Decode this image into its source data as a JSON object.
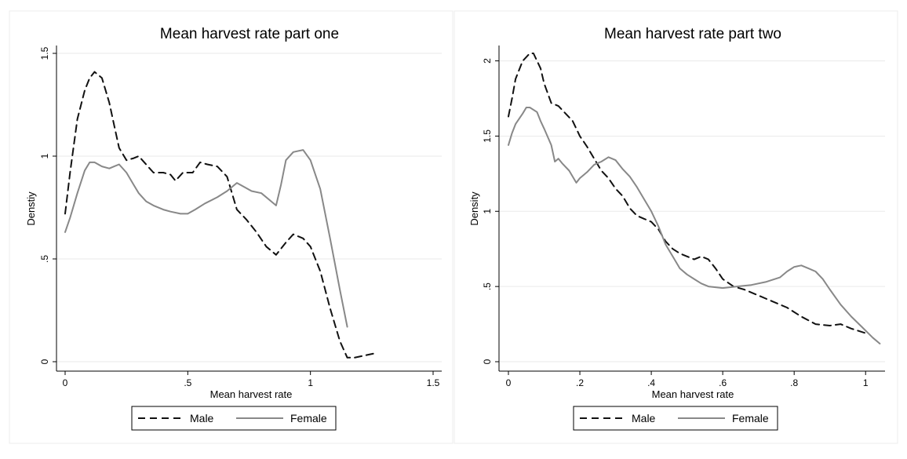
{
  "chart_data": [
    {
      "type": "line",
      "title": "Mean harvest rate part one",
      "xlabel": "Mean harvest rate",
      "ylabel": "Denstiy",
      "xlim": [
        0,
        1.5
      ],
      "ylim": [
        0,
        1.5
      ],
      "xticks": [
        0,
        0.5,
        1,
        1.5
      ],
      "xtick_labels": [
        "0",
        ".5",
        "1",
        "1.5"
      ],
      "yticks": [
        0,
        0.5,
        1,
        1.5
      ],
      "ytick_labels": [
        "0",
        ".5",
        "1",
        "1.5"
      ],
      "grid": true,
      "legend_position": "bottom",
      "series": [
        {
          "name": "Male",
          "style": "dashed",
          "color": "#111111",
          "x": [
            0,
            0.02,
            0.05,
            0.08,
            0.1,
            0.12,
            0.15,
            0.18,
            0.2,
            0.22,
            0.25,
            0.28,
            0.3,
            0.33,
            0.36,
            0.4,
            0.43,
            0.45,
            0.48,
            0.52,
            0.55,
            0.58,
            0.62,
            0.66,
            0.7,
            0.74,
            0.78,
            0.82,
            0.86,
            0.9,
            0.93,
            0.97,
            1.0,
            1.04,
            1.08,
            1.12,
            1.15,
            1.18,
            1.22,
            1.26
          ],
          "y": [
            0.72,
            0.92,
            1.18,
            1.32,
            1.38,
            1.41,
            1.38,
            1.26,
            1.15,
            1.04,
            0.98,
            0.99,
            1.0,
            0.96,
            0.92,
            0.92,
            0.91,
            0.88,
            0.92,
            0.92,
            0.97,
            0.96,
            0.95,
            0.9,
            0.74,
            0.69,
            0.63,
            0.56,
            0.52,
            0.58,
            0.62,
            0.6,
            0.56,
            0.44,
            0.26,
            0.1,
            0.02,
            0.02,
            0.03,
            0.04
          ]
        },
        {
          "name": "Female",
          "style": "solid",
          "color": "#888888",
          "x": [
            0,
            0.02,
            0.05,
            0.08,
            0.1,
            0.12,
            0.15,
            0.18,
            0.2,
            0.22,
            0.25,
            0.28,
            0.3,
            0.33,
            0.36,
            0.4,
            0.43,
            0.47,
            0.5,
            0.53,
            0.57,
            0.62,
            0.66,
            0.7,
            0.73,
            0.76,
            0.8,
            0.84,
            0.86,
            0.88,
            0.9,
            0.93,
            0.97,
            1.0,
            1.04,
            1.08,
            1.12,
            1.15
          ],
          "y": [
            0.63,
            0.7,
            0.82,
            0.93,
            0.97,
            0.97,
            0.95,
            0.94,
            0.95,
            0.96,
            0.92,
            0.86,
            0.82,
            0.78,
            0.76,
            0.74,
            0.73,
            0.72,
            0.72,
            0.74,
            0.77,
            0.8,
            0.83,
            0.87,
            0.85,
            0.83,
            0.82,
            0.78,
            0.76,
            0.86,
            0.98,
            1.02,
            1.03,
            0.98,
            0.84,
            0.6,
            0.35,
            0.17
          ]
        }
      ]
    },
    {
      "type": "line",
      "title": "Mean harvest rate part two",
      "xlabel": "Mean harvest rate",
      "ylabel": "Density",
      "xlim": [
        0,
        1.05
      ],
      "ylim": [
        0,
        2.05
      ],
      "xticks": [
        0,
        0.2,
        0.4,
        0.6,
        0.8,
        1
      ],
      "xtick_labels": [
        "0",
        ".2",
        ".4",
        ".6",
        ".8",
        "1"
      ],
      "yticks": [
        0,
        0.5,
        1,
        1.5,
        2
      ],
      "ytick_labels": [
        "0",
        ".5",
        "1",
        "1.5",
        "2"
      ],
      "grid": true,
      "legend_position": "bottom",
      "series": [
        {
          "name": "Male",
          "style": "dashed",
          "color": "#111111",
          "x": [
            0,
            0.01,
            0.02,
            0.04,
            0.06,
            0.07,
            0.09,
            0.1,
            0.12,
            0.14,
            0.16,
            0.18,
            0.2,
            0.22,
            0.24,
            0.26,
            0.28,
            0.3,
            0.32,
            0.34,
            0.36,
            0.38,
            0.4,
            0.42,
            0.44,
            0.46,
            0.48,
            0.5,
            0.52,
            0.54,
            0.56,
            0.58,
            0.6,
            0.63,
            0.66,
            0.7,
            0.74,
            0.78,
            0.82,
            0.86,
            0.9,
            0.93,
            0.96,
            1.0
          ],
          "y": [
            1.63,
            1.75,
            1.88,
            2.0,
            2.05,
            2.05,
            1.95,
            1.85,
            1.72,
            1.7,
            1.65,
            1.6,
            1.5,
            1.43,
            1.35,
            1.27,
            1.22,
            1.15,
            1.1,
            1.02,
            0.97,
            0.95,
            0.93,
            0.88,
            0.8,
            0.75,
            0.72,
            0.7,
            0.68,
            0.7,
            0.68,
            0.62,
            0.55,
            0.5,
            0.48,
            0.44,
            0.4,
            0.36,
            0.3,
            0.25,
            0.24,
            0.25,
            0.22,
            0.19
          ]
        },
        {
          "name": "Female",
          "style": "solid",
          "color": "#888888",
          "x": [
            0,
            0.01,
            0.02,
            0.04,
            0.05,
            0.06,
            0.08,
            0.09,
            0.1,
            0.12,
            0.13,
            0.14,
            0.15,
            0.17,
            0.19,
            0.2,
            0.22,
            0.24,
            0.26,
            0.28,
            0.3,
            0.32,
            0.34,
            0.36,
            0.38,
            0.4,
            0.42,
            0.44,
            0.46,
            0.48,
            0.5,
            0.52,
            0.54,
            0.56,
            0.6,
            0.64,
            0.68,
            0.72,
            0.76,
            0.78,
            0.8,
            0.82,
            0.84,
            0.86,
            0.88,
            0.9,
            0.93,
            0.96,
            0.99,
            1.02,
            1.04
          ],
          "y": [
            1.44,
            1.52,
            1.58,
            1.65,
            1.69,
            1.69,
            1.66,
            1.6,
            1.55,
            1.44,
            1.33,
            1.35,
            1.32,
            1.27,
            1.19,
            1.22,
            1.26,
            1.31,
            1.33,
            1.36,
            1.34,
            1.28,
            1.23,
            1.16,
            1.08,
            1.0,
            0.9,
            0.78,
            0.7,
            0.62,
            0.58,
            0.55,
            0.52,
            0.5,
            0.49,
            0.5,
            0.51,
            0.53,
            0.56,
            0.6,
            0.63,
            0.64,
            0.62,
            0.6,
            0.55,
            0.48,
            0.38,
            0.3,
            0.23,
            0.16,
            0.12
          ]
        }
      ]
    }
  ]
}
